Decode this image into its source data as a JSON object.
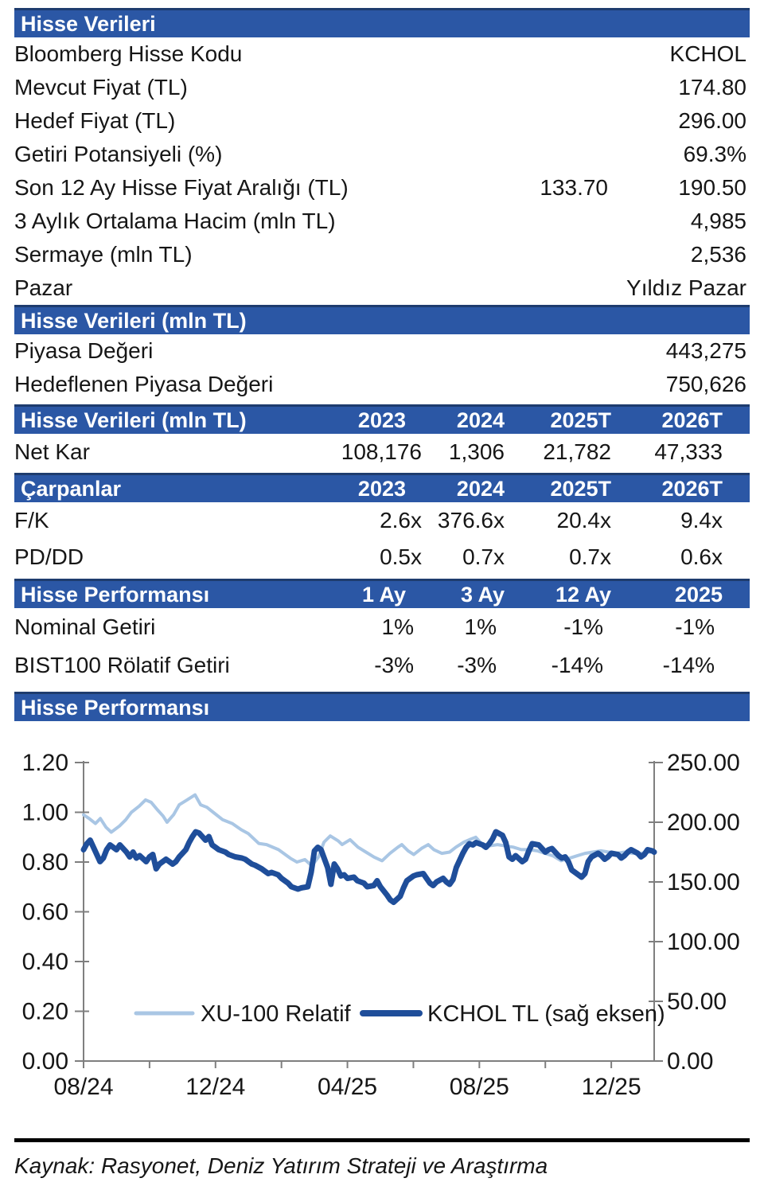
{
  "colors": {
    "header_bar": "#2B57A5",
    "header_bar_border": "#1E3C6E",
    "header_text": "#ffffff",
    "body_text": "#161616",
    "axis_gray": "#7f7f7f",
    "xu100_line": "#A9C6E4",
    "kchol_line": "#1F4E9A"
  },
  "tables": [
    {
      "header": "Hisse Verileri",
      "type": "kv",
      "rows": [
        {
          "label": "Bloomberg Hisse Kodu",
          "values": [
            "KCHOL"
          ]
        },
        {
          "label": "Mevcut Fiyat (TL)",
          "values": [
            "174.80"
          ]
        },
        {
          "label": "Hedef Fiyat (TL)",
          "values": [
            "296.00"
          ]
        },
        {
          "label": "Getiri Potansiyeli (%)",
          "values": [
            "69.3%"
          ]
        },
        {
          "label": "Son 12 Ay Hisse Fiyat Aralığı (TL)",
          "values": [
            "133.70",
            "190.50"
          ]
        },
        {
          "label": "3 Aylık Ortalama Hacim (mln TL)",
          "values": [
            "4,985"
          ]
        },
        {
          "label": "Sermaye (mln TL)",
          "values": [
            "2,536"
          ]
        },
        {
          "label": "Pazar",
          "values": [
            "Yıldız Pazar"
          ]
        }
      ]
    },
    {
      "header": "Hisse Verileri (mln TL)",
      "type": "kv",
      "rows": [
        {
          "label": "Piyasa Değeri",
          "values": [
            "443,275"
          ]
        },
        {
          "label": "Hedeflenen Piyasa Değeri",
          "values": [
            "750,626"
          ]
        }
      ]
    },
    {
      "header": "Hisse Verileri (mln TL)",
      "type": "cols",
      "css": "t2",
      "columns": [
        "2023",
        "2024",
        "2025T",
        "2026T"
      ],
      "rows": [
        {
          "label": "Net Kar",
          "values": [
            "108,176",
            "1,306",
            "21,782",
            "47,333"
          ]
        }
      ]
    },
    {
      "header": "Çarpanlar",
      "type": "cols",
      "css": "t3",
      "columns": [
        "2023",
        "2024",
        "2025T",
        "2026T"
      ],
      "rows": [
        {
          "label": "F/K",
          "values": [
            "2.6x",
            "376.6x",
            "20.4x",
            "9.4x"
          ]
        },
        {
          "label": "PD/DD",
          "values": [
            "0.5x",
            "0.7x",
            "0.7x",
            "0.6x"
          ]
        }
      ]
    },
    {
      "header": "Hisse Performansı",
      "type": "cols",
      "css": "t4",
      "columns": [
        "1 Ay",
        "3 Ay",
        "12 Ay",
        "2025"
      ],
      "rows": [
        {
          "label": "Nominal Getiri",
          "values": [
            "1%",
            "1%",
            "-1%",
            "-1%"
          ]
        },
        {
          "label": "BIST100 Rölatif Getiri",
          "values": [
            "-3%",
            "-3%",
            "-14%",
            "-14%"
          ]
        }
      ]
    },
    {
      "header": "Hisse Performansı",
      "type": "chart-header"
    }
  ],
  "chart_data": {
    "type": "line",
    "title": "",
    "legend_position": "inside-bottom",
    "grid": false,
    "left_axis": {
      "min": 0,
      "max": 1.2,
      "tick_step": 0.2,
      "tick_labels": [
        "1.20",
        "1.00",
        "0.80",
        "0.60",
        "0.40",
        "0.20",
        "0.00"
      ]
    },
    "right_axis": {
      "min": 0,
      "max": 250,
      "tick_step": 50,
      "tick_labels": [
        "250.00",
        "200.00",
        "150.00",
        "100.00",
        "50.00",
        "0.00"
      ]
    },
    "x_axis": {
      "months_total": 17.3,
      "minor_tick_every_months": 2,
      "labels": [
        {
          "pos": 0,
          "text": "08/24"
        },
        {
          "pos": 4,
          "text": "12/24"
        },
        {
          "pos": 8,
          "text": "04/25"
        },
        {
          "pos": 12,
          "text": "08/25"
        },
        {
          "pos": 16,
          "text": "12/25"
        }
      ]
    },
    "series": [
      {
        "name": "XU-100 Relatif",
        "axis": "left",
        "color": "#A9C6E4",
        "stroke_width": 4,
        "points": [
          [
            0,
            0.99
          ],
          [
            0.17,
            0.975
          ],
          [
            0.36,
            0.955
          ],
          [
            0.51,
            0.975
          ],
          [
            0.68,
            0.94
          ],
          [
            0.84,
            0.92
          ],
          [
            1.09,
            0.945
          ],
          [
            1.28,
            0.97
          ],
          [
            1.45,
            1.0
          ],
          [
            1.69,
            1.025
          ],
          [
            1.88,
            1.05
          ],
          [
            2.05,
            1.04
          ],
          [
            2.24,
            1.01
          ],
          [
            2.41,
            0.985
          ],
          [
            2.53,
            0.96
          ],
          [
            2.73,
            0.99
          ],
          [
            2.9,
            1.03
          ],
          [
            3.14,
            1.05
          ],
          [
            3.38,
            1.07
          ],
          [
            3.55,
            1.03
          ],
          [
            3.74,
            1.02
          ],
          [
            3.93,
            1.0
          ],
          [
            4.22,
            0.97
          ],
          [
            4.51,
            0.955
          ],
          [
            4.78,
            0.93
          ],
          [
            4.99,
            0.915
          ],
          [
            5.31,
            0.875
          ],
          [
            5.55,
            0.87
          ],
          [
            5.91,
            0.85
          ],
          [
            6.27,
            0.815
          ],
          [
            6.47,
            0.8
          ],
          [
            6.71,
            0.81
          ],
          [
            6.92,
            0.785
          ],
          [
            7.12,
            0.82
          ],
          [
            7.29,
            0.88
          ],
          [
            7.48,
            0.905
          ],
          [
            7.72,
            0.885
          ],
          [
            7.84,
            0.87
          ],
          [
            8.08,
            0.89
          ],
          [
            8.32,
            0.86
          ],
          [
            8.56,
            0.84
          ],
          [
            8.81,
            0.82
          ],
          [
            9.05,
            0.805
          ],
          [
            9.29,
            0.835
          ],
          [
            9.53,
            0.86
          ],
          [
            9.65,
            0.87
          ],
          [
            9.84,
            0.845
          ],
          [
            10.01,
            0.83
          ],
          [
            10.25,
            0.855
          ],
          [
            10.45,
            0.87
          ],
          [
            10.62,
            0.85
          ],
          [
            10.86,
            0.835
          ],
          [
            11.1,
            0.84
          ],
          [
            11.29,
            0.86
          ],
          [
            11.53,
            0.88
          ],
          [
            11.7,
            0.89
          ],
          [
            11.89,
            0.9
          ],
          [
            12.06,
            0.875
          ],
          [
            12.3,
            0.865
          ],
          [
            12.55,
            0.87
          ],
          [
            12.79,
            0.865
          ],
          [
            13.03,
            0.86
          ],
          [
            13.27,
            0.85
          ],
          [
            13.51,
            0.85
          ],
          [
            13.75,
            0.845
          ],
          [
            13.99,
            0.835
          ],
          [
            14.23,
            0.825
          ],
          [
            14.48,
            0.805
          ],
          [
            14.72,
            0.815
          ],
          [
            14.96,
            0.825
          ],
          [
            15.2,
            0.835
          ],
          [
            15.44,
            0.84
          ],
          [
            15.68,
            0.845
          ],
          [
            15.92,
            0.84
          ],
          [
            16.16,
            0.835
          ],
          [
            16.4,
            0.84
          ],
          [
            16.65,
            0.835
          ],
          [
            16.89,
            0.835
          ],
          [
            17.13,
            0.84
          ],
          [
            17.3,
            0.84
          ]
        ]
      },
      {
        "name": "KCHOL TL (sağ eksen)",
        "axis": "right",
        "color": "#1F4E9A",
        "stroke_width": 7,
        "points": [
          [
            0,
            177
          ],
          [
            0.1,
            182
          ],
          [
            0.2,
            185
          ],
          [
            0.4,
            173
          ],
          [
            0.5,
            167
          ],
          [
            0.6,
            170
          ],
          [
            0.7,
            177
          ],
          [
            0.8,
            181
          ],
          [
            1.0,
            177
          ],
          [
            1.1,
            181
          ],
          [
            1.3,
            175
          ],
          [
            1.4,
            171
          ],
          [
            1.5,
            175
          ],
          [
            1.6,
            170
          ],
          [
            1.7,
            172
          ],
          [
            1.9,
            167
          ],
          [
            2.0,
            171
          ],
          [
            2.1,
            173
          ],
          [
            2.2,
            161
          ],
          [
            2.3,
            165
          ],
          [
            2.5,
            169
          ],
          [
            2.6,
            167
          ],
          [
            2.7,
            165
          ],
          [
            2.8,
            167
          ],
          [
            2.9,
            171
          ],
          [
            3.1,
            177
          ],
          [
            3.2,
            183
          ],
          [
            3.3,
            188
          ],
          [
            3.4,
            192
          ],
          [
            3.5,
            191
          ],
          [
            3.7,
            185
          ],
          [
            3.8,
            188
          ],
          [
            3.9,
            181
          ],
          [
            4.0,
            179
          ],
          [
            4.1,
            177
          ],
          [
            4.3,
            175
          ],
          [
            4.4,
            173
          ],
          [
            4.5,
            172
          ],
          [
            4.6,
            171
          ],
          [
            4.8,
            170
          ],
          [
            4.9,
            169
          ],
          [
            5.0,
            167
          ],
          [
            5.1,
            165
          ],
          [
            5.2,
            164
          ],
          [
            5.4,
            161
          ],
          [
            5.5,
            159
          ],
          [
            5.6,
            157
          ],
          [
            5.7,
            158
          ],
          [
            5.9,
            156
          ],
          [
            6.0,
            153
          ],
          [
            6.2,
            149
          ],
          [
            6.3,
            146
          ],
          [
            6.5,
            144
          ],
          [
            6.6,
            145
          ],
          [
            6.8,
            146
          ],
          [
            6.9,
            158
          ],
          [
            7.0,
            176
          ],
          [
            7.1,
            179
          ],
          [
            7.2,
            177
          ],
          [
            7.4,
            162
          ],
          [
            7.5,
            148
          ],
          [
            7.6,
            165
          ],
          [
            7.7,
            161
          ],
          [
            7.8,
            155
          ],
          [
            7.9,
            156
          ],
          [
            8.0,
            153
          ],
          [
            8.2,
            154
          ],
          [
            8.3,
            151
          ],
          [
            8.5,
            149
          ],
          [
            8.6,
            146
          ],
          [
            8.8,
            147
          ],
          [
            8.9,
            151
          ],
          [
            9.0,
            146
          ],
          [
            9.2,
            139
          ],
          [
            9.3,
            135
          ],
          [
            9.4,
            133
          ],
          [
            9.6,
            138
          ],
          [
            9.7,
            145
          ],
          [
            9.8,
            151
          ],
          [
            10.0,
            155
          ],
          [
            10.1,
            156
          ],
          [
            10.3,
            157
          ],
          [
            10.4,
            153
          ],
          [
            10.5,
            149
          ],
          [
            10.6,
            147
          ],
          [
            10.7,
            150
          ],
          [
            10.9,
            153
          ],
          [
            11.0,
            150
          ],
          [
            11.1,
            148
          ],
          [
            11.2,
            152
          ],
          [
            11.3,
            162
          ],
          [
            11.5,
            174
          ],
          [
            11.6,
            179
          ],
          [
            11.7,
            182
          ],
          [
            11.8,
            181
          ],
          [
            11.9,
            183
          ],
          [
            12.1,
            181
          ],
          [
            12.2,
            179
          ],
          [
            12.3,
            182
          ],
          [
            12.4,
            186
          ],
          [
            12.5,
            192
          ],
          [
            12.7,
            189
          ],
          [
            12.8,
            183
          ],
          [
            12.9,
            171
          ],
          [
            13.0,
            169
          ],
          [
            13.1,
            172
          ],
          [
            13.3,
            167
          ],
          [
            13.4,
            169
          ],
          [
            13.5,
            176
          ],
          [
            13.6,
            182
          ],
          [
            13.8,
            181
          ],
          [
            13.9,
            178
          ],
          [
            14.0,
            175
          ],
          [
            14.1,
            177
          ],
          [
            14.2,
            178
          ],
          [
            14.4,
            172
          ],
          [
            14.5,
            170
          ],
          [
            14.6,
            171
          ],
          [
            14.7,
            167
          ],
          [
            14.8,
            160
          ],
          [
            15.0,
            156
          ],
          [
            15.1,
            154
          ],
          [
            15.2,
            157
          ],
          [
            15.3,
            167
          ],
          [
            15.4,
            171
          ],
          [
            15.6,
            174
          ],
          [
            15.7,
            172
          ],
          [
            15.8,
            169
          ],
          [
            15.9,
            171
          ],
          [
            16.0,
            174
          ],
          [
            16.2,
            173
          ],
          [
            16.3,
            170
          ],
          [
            16.4,
            172
          ],
          [
            16.5,
            175
          ],
          [
            16.6,
            177
          ],
          [
            16.8,
            174
          ],
          [
            16.9,
            171
          ],
          [
            17.0,
            173
          ],
          [
            17.1,
            177
          ],
          [
            17.25,
            176
          ],
          [
            17.3,
            175
          ]
        ]
      }
    ]
  },
  "footer": {
    "source": "Kaynak: Rasyonet, Deniz Yatırım Strateji ve Araştırma"
  }
}
